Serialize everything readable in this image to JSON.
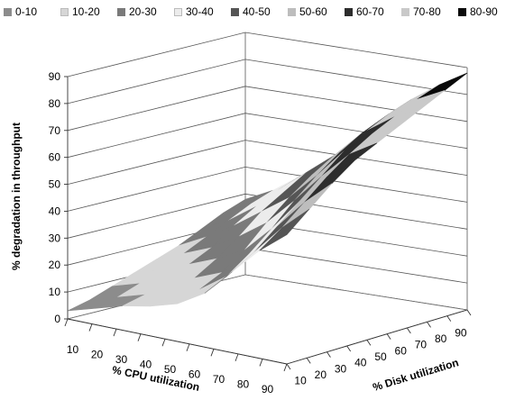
{
  "chart_data": {
    "type": "surface",
    "title": "",
    "legend": {
      "position": "top",
      "entries": [
        {
          "label": "0-10",
          "color": "#8c8c8c"
        },
        {
          "label": "10-20",
          "color": "#d6d6d6"
        },
        {
          "label": "20-30",
          "color": "#7a7a7a"
        },
        {
          "label": "30-40",
          "color": "#ececec"
        },
        {
          "label": "40-50",
          "color": "#555555"
        },
        {
          "label": "50-60",
          "color": "#bdbdbd"
        },
        {
          "label": "60-70",
          "color": "#2d2d2d"
        },
        {
          "label": "70-80",
          "color": "#c9c9c9"
        },
        {
          "label": "80-90",
          "color": "#0a0a0a"
        }
      ]
    },
    "z_axis": {
      "label": "% degradation in throughput",
      "range": [
        0,
        90
      ],
      "ticks": [
        0,
        10,
        20,
        30,
        40,
        50,
        60,
        70,
        80,
        90
      ]
    },
    "cpu_axis": {
      "label": "% CPU utilization",
      "ticks": [
        10,
        20,
        30,
        40,
        50,
        60,
        70,
        80,
        90
      ]
    },
    "disk_axis": {
      "label": "% Disk utilization",
      "ticks": [
        10,
        20,
        30,
        40,
        50,
        60,
        70,
        80,
        90
      ]
    },
    "grid": true,
    "z_values": [
      [
        3,
        5,
        8,
        11,
        14,
        17,
        21,
        25,
        28
      ],
      [
        6,
        8,
        11,
        14,
        18,
        22,
        26,
        30,
        33
      ],
      [
        9,
        11,
        14,
        18,
        22,
        28,
        33,
        37,
        40
      ],
      [
        11,
        13,
        17,
        22,
        28,
        35,
        40,
        45,
        48
      ],
      [
        14,
        17,
        21,
        27,
        35,
        42,
        48,
        53,
        56
      ],
      [
        20,
        24,
        30,
        37,
        45,
        52,
        58,
        63,
        66
      ],
      [
        30,
        35,
        42,
        49,
        56,
        63,
        68,
        72,
        75
      ],
      [
        40,
        46,
        53,
        60,
        66,
        71,
        75,
        79,
        82
      ],
      [
        48,
        55,
        62,
        68,
        72,
        76,
        80,
        84,
        88
      ]
    ]
  }
}
